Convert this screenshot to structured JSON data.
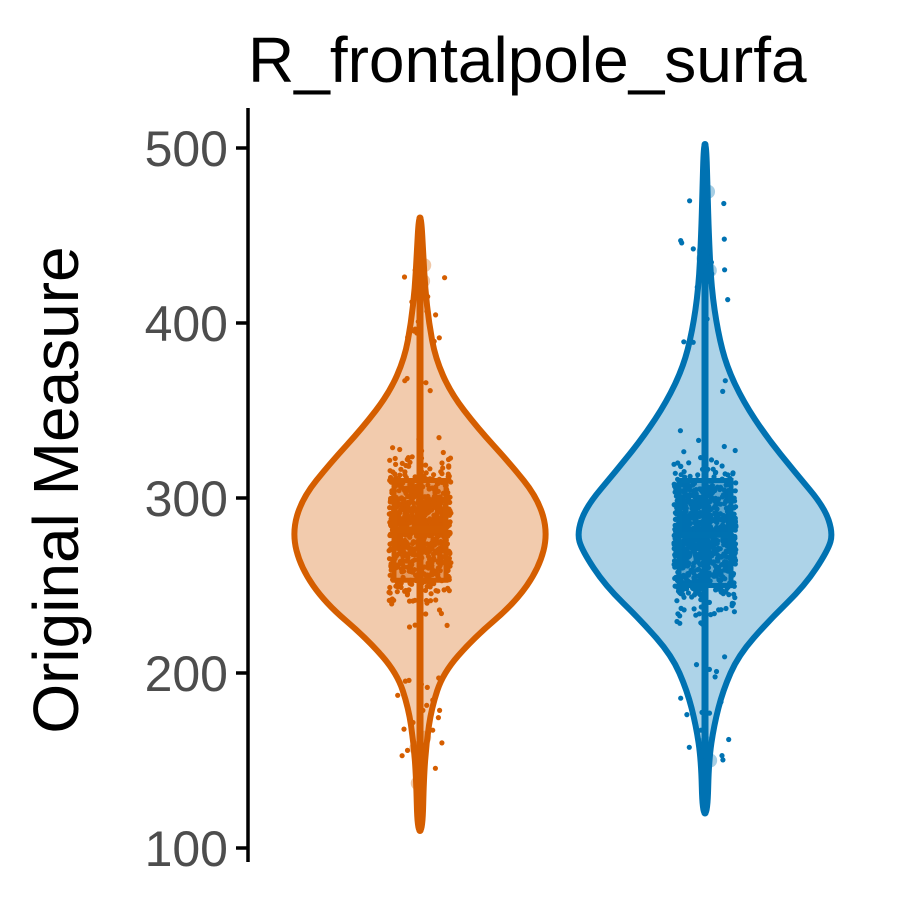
{
  "chart_data": {
    "type": "violin",
    "title": "R_frontalpole_surfa",
    "xlabel": "",
    "ylabel": "Original Measure",
    "ylim": [
      100,
      520
    ],
    "yticks": [
      100,
      200,
      300,
      400,
      500
    ],
    "grid": false,
    "legend": "none",
    "series": [
      {
        "color": "#D55E00",
        "fill": "#F2CBAD",
        "min": 110,
        "max": 460,
        "q1": 253,
        "median": 282,
        "q3": 310,
        "density": [
          [
            110,
            0.02
          ],
          [
            140,
            0.03
          ],
          [
            160,
            0.05
          ],
          [
            180,
            0.09
          ],
          [
            200,
            0.18
          ],
          [
            220,
            0.42
          ],
          [
            240,
            0.74
          ],
          [
            260,
            0.93
          ],
          [
            280,
            1.0
          ],
          [
            300,
            0.92
          ],
          [
            320,
            0.7
          ],
          [
            340,
            0.45
          ],
          [
            360,
            0.24
          ],
          [
            380,
            0.12
          ],
          [
            400,
            0.07
          ],
          [
            420,
            0.04
          ],
          [
            440,
            0.025
          ],
          [
            460,
            0.01
          ]
        ],
        "outliers": [
          137,
          157,
          163,
          418,
          424,
          433
        ]
      },
      {
        "color": "#0072B2",
        "fill": "#ADD3E8",
        "min": 120,
        "max": 502,
        "q1": 250,
        "median": 279,
        "q3": 310,
        "density": [
          [
            120,
            0.02
          ],
          [
            150,
            0.03
          ],
          [
            170,
            0.07
          ],
          [
            190,
            0.14
          ],
          [
            210,
            0.26
          ],
          [
            230,
            0.5
          ],
          [
            250,
            0.78
          ],
          [
            270,
            0.96
          ],
          [
            280,
            1.0
          ],
          [
            295,
            0.93
          ],
          [
            315,
            0.7
          ],
          [
            335,
            0.48
          ],
          [
            355,
            0.3
          ],
          [
            375,
            0.17
          ],
          [
            395,
            0.1
          ],
          [
            420,
            0.05
          ],
          [
            450,
            0.03
          ],
          [
            475,
            0.02
          ],
          [
            502,
            0.01
          ]
        ],
        "outliers": [
          150,
          160,
          430,
          437,
          441,
          475
        ]
      }
    ]
  }
}
